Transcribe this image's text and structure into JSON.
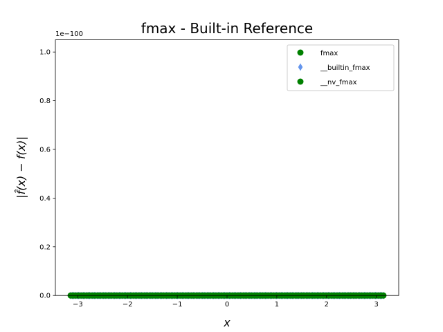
{
  "chart_data": {
    "type": "scatter",
    "title": "fmax - Built-in Reference",
    "xlabel": "x",
    "ylabel": "|f̂(x) − f(x)|",
    "y_offset_text": "1e−100",
    "xlim": [
      -3.45,
      3.45
    ],
    "ylim": [
      0,
      1.05
    ],
    "x_ticks": [
      -3,
      -2,
      -1,
      0,
      1,
      2,
      3
    ],
    "x_tick_labels": [
      "−3",
      "−2",
      "−1",
      "0",
      "1",
      "2",
      "3"
    ],
    "y_ticks": [
      0.0,
      0.2,
      0.4,
      0.6,
      0.8,
      1.0
    ],
    "y_tick_labels": [
      "0.0",
      "0.2",
      "0.4",
      "0.6",
      "0.8",
      "1.0"
    ],
    "grid": false,
    "legend_position": "top-right",
    "series": [
      {
        "name": "fmax",
        "color": "#008000",
        "marker": "circle",
        "x_range": [
          -3.14159,
          3.14159
        ],
        "y": 0
      },
      {
        "name": "__builtin_fmax",
        "color": "#6495ed",
        "marker": "thin_diamond",
        "x_range": [
          -3.14159,
          3.14159
        ],
        "y": 0
      },
      {
        "name": "__nv_fmax",
        "color": "#008000",
        "marker": "circle",
        "x_range": [
          -3.14159,
          3.14159
        ],
        "y": 0
      }
    ]
  }
}
